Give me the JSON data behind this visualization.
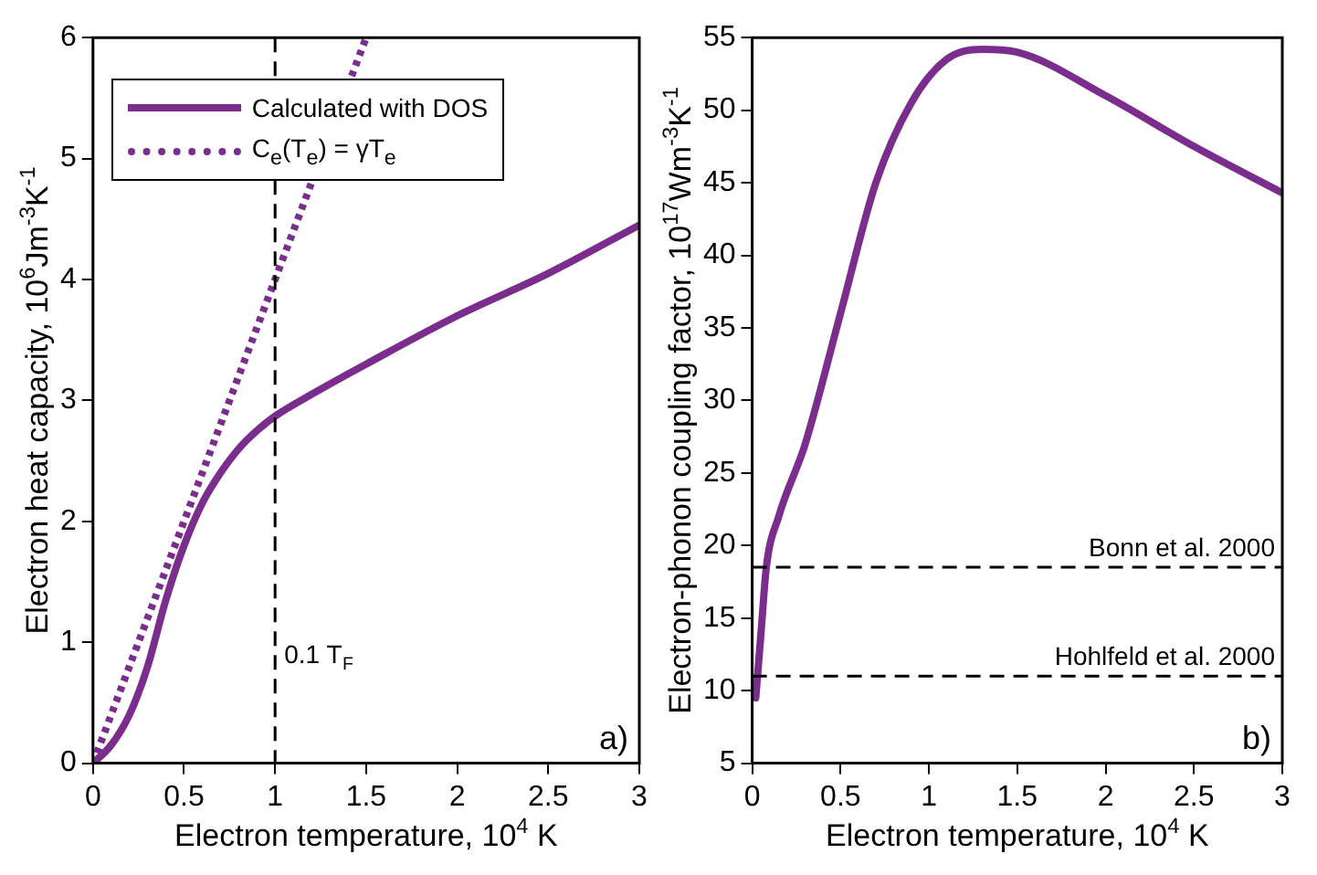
{
  "chart_data": [
    {
      "type": "line",
      "xlabel": "Electron temperature, 10$^{4}$ K",
      "ylabel": "Electron heat capacity, 10$^{6}$Jm$^{-3}$K$^{-1}$",
      "xlim": [
        0,
        3
      ],
      "xticks": [
        0,
        0.5,
        1,
        1.5,
        2,
        2.5,
        3
      ],
      "ylim": [
        0,
        6
      ],
      "yticks": [
        0,
        1,
        2,
        3,
        4,
        5,
        6
      ],
      "grid": false,
      "legend": "top left",
      "marker": "none",
      "series": [
        {
          "name": "Calculated with DOS",
          "color": "#7b2d8e",
          "line_style": "solid",
          "x": [
            0,
            0.1,
            0.2,
            0.3,
            0.4,
            0.5,
            0.6,
            0.7,
            0.8,
            0.9,
            1,
            1.2,
            1.5,
            2,
            2.5,
            3
          ],
          "values": [
            0,
            0.15,
            0.4,
            0.8,
            1.35,
            1.8,
            2.15,
            2.4,
            2.6,
            2.75,
            2.87,
            3.05,
            3.3,
            3.7,
            4.05,
            4.45
          ]
        },
        {
          "name": "C$_{e}$(T$_{e}$) = γT$_{e}$",
          "color": "#7b2d8e",
          "line_style": "dotted",
          "x": [
            0,
            1.5
          ],
          "values": [
            0,
            6
          ]
        }
      ],
      "ref_lines": [
        {
          "axis": "x",
          "value": 1,
          "label": "0.1 T$_{F}$",
          "color": "#000000",
          "line_style": "dashed"
        }
      ],
      "annotations": [
        "a)"
      ]
    },
    {
      "type": "line",
      "xlabel": "Electron temperature, 10$^{4}$ K",
      "ylabel": "Electron-phonon coupling factor, 10$^{17}$Wm$^{-3}$K$^{-1}$",
      "xlim": [
        0,
        3
      ],
      "xticks": [
        0,
        0.5,
        1,
        1.5,
        2,
        2.5,
        3
      ],
      "ylim": [
        5,
        55
      ],
      "yticks": [
        5,
        10,
        15,
        20,
        25,
        30,
        35,
        40,
        45,
        50,
        55
      ],
      "grid": false,
      "legend": false,
      "marker": "none",
      "series": [
        {
          "color": "#7b2d8e",
          "line_style": "solid",
          "x": [
            0.02,
            0.05,
            0.08,
            0.15,
            0.3,
            0.5,
            0.7,
            0.9,
            1.1,
            1.3,
            1.5,
            2,
            2.5,
            3
          ],
          "values": [
            9.5,
            14,
            18.5,
            22,
            27,
            36,
            45,
            50.5,
            53.5,
            54.2,
            54,
            51,
            47.5,
            44.3
          ]
        }
      ],
      "ref_lines": [
        {
          "axis": "y",
          "value": 18.5,
          "label": "Bonn et al. 2000",
          "color": "#000000",
          "line_style": "dashed"
        },
        {
          "axis": "y",
          "value": 11,
          "label": "Hohlfeld et al. 2000",
          "color": "#000000",
          "line_style": "dashed"
        }
      ],
      "annotations": [
        "b)"
      ]
    }
  ]
}
